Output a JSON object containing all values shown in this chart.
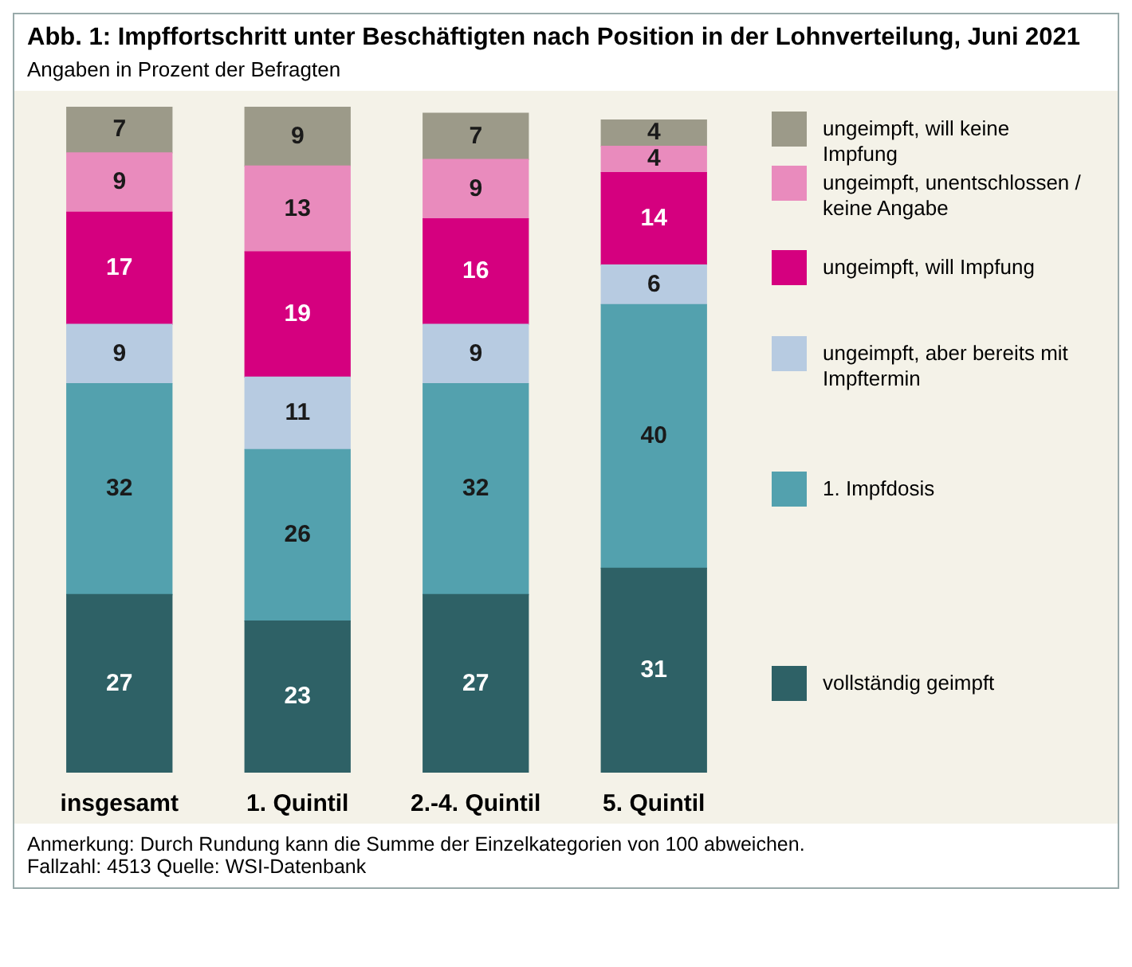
{
  "chart_data": {
    "type": "bar",
    "title": "Abb. 1: Impffortschritt unter Beschäftigten nach Position in der Lohnverteilung, Juni 2021",
    "subtitle": "Angaben in Prozent der Befragten",
    "categories": [
      "insgesamt",
      "1. Quintil",
      "2.-4. Quintil",
      "5. Quintil"
    ],
    "stacked": true,
    "data_labels": true,
    "legend": "right",
    "ylim": [
      0,
      101
    ],
    "series": [
      {
        "name": "vollständig geimpft",
        "color": "#2e6166",
        "values": [
          27,
          23,
          27,
          31
        ]
      },
      {
        "name": "1. Impfdosis",
        "color": "#53a1ae",
        "values": [
          32,
          26,
          32,
          40
        ]
      },
      {
        "name": "ungeimpft, aber bereits mit Impftermin",
        "color": "#b7cbe1",
        "values": [
          9,
          11,
          9,
          6
        ]
      },
      {
        "name": "ungeimpft, will Impfung",
        "color": "#d5007f",
        "values": [
          17,
          19,
          16,
          14
        ]
      },
      {
        "name": "ungeimpft, unentschlossen / keine Angabe",
        "color": "#e98bbd",
        "values": [
          9,
          13,
          9,
          4
        ]
      },
      {
        "name": "ungeimpft, will keine Impfung",
        "color": "#9c9a89",
        "values": [
          7,
          9,
          7,
          4
        ]
      }
    ],
    "annotations": [
      "Anmerkung: Durch Rundung kann die Summe der Einzelkategorien von 100 abweichen.",
      "Fallzahl:  4513    Quelle: WSI-Datenbank"
    ]
  }
}
